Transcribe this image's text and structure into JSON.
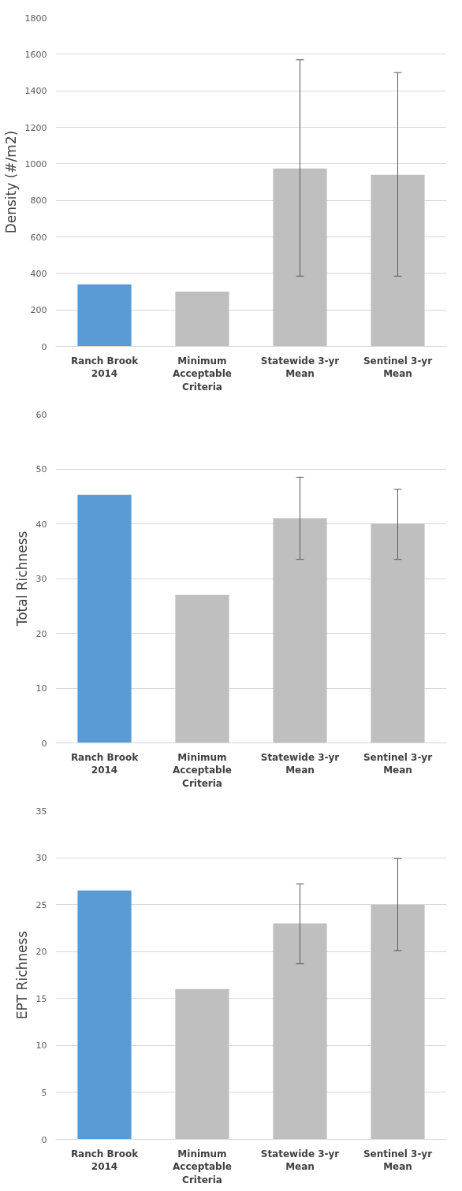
{
  "chart_data": [
    {
      "type": "bar",
      "ylabel": "Density (#/m2)",
      "categories": [
        "Ranch Brook\n2014",
        "Minimum\nAcceptable\nCriteria",
        "Statewide 3-yr\nMean",
        "Sentinel 3-yr\nMean"
      ],
      "values": [
        340,
        300,
        975,
        940
      ],
      "colors": [
        "#5b9bd5",
        "#bfbfbf",
        "#bfbfbf",
        "#bfbfbf"
      ],
      "errors": [
        null,
        null,
        [
          385,
          1570
        ],
        [
          385,
          1500
        ]
      ],
      "ylim": [
        0,
        1800
      ],
      "yticks": [
        0,
        200,
        400,
        600,
        800,
        1000,
        1200,
        1400,
        1600,
        1800
      ],
      "grid": "y"
    },
    {
      "type": "bar",
      "ylabel": "Total Richness",
      "categories": [
        "Ranch Brook\n2014",
        "Minimum\nAcceptable\nCriteria",
        "Statewide 3-yr\nMean",
        "Sentinel 3-yr\nMean"
      ],
      "values": [
        45.3,
        27,
        41,
        40
      ],
      "colors": [
        "#5b9bd5",
        "#bfbfbf",
        "#bfbfbf",
        "#bfbfbf"
      ],
      "errors": [
        null,
        null,
        [
          33.5,
          48.5
        ],
        [
          33.5,
          46.3
        ]
      ],
      "ylim": [
        0,
        60
      ],
      "yticks": [
        0,
        10,
        20,
        30,
        40,
        50,
        60
      ],
      "grid": "y"
    },
    {
      "type": "bar",
      "ylabel": "EPT Richness",
      "categories": [
        "Ranch Brook\n2014",
        "Minimum\nAcceptable\nCriteria",
        "Statewide 3-yr\nMean",
        "Sentinel 3-yr\nMean"
      ],
      "values": [
        26.5,
        16,
        23,
        25
      ],
      "colors": [
        "#5b9bd5",
        "#bfbfbf",
        "#bfbfbf",
        "#bfbfbf"
      ],
      "errors": [
        null,
        null,
        [
          18.7,
          27.2
        ],
        [
          20.1,
          29.9
        ]
      ],
      "ylim": [
        0,
        35
      ],
      "yticks": [
        0,
        5,
        10,
        15,
        20,
        25,
        30,
        35
      ],
      "grid": "y"
    }
  ]
}
